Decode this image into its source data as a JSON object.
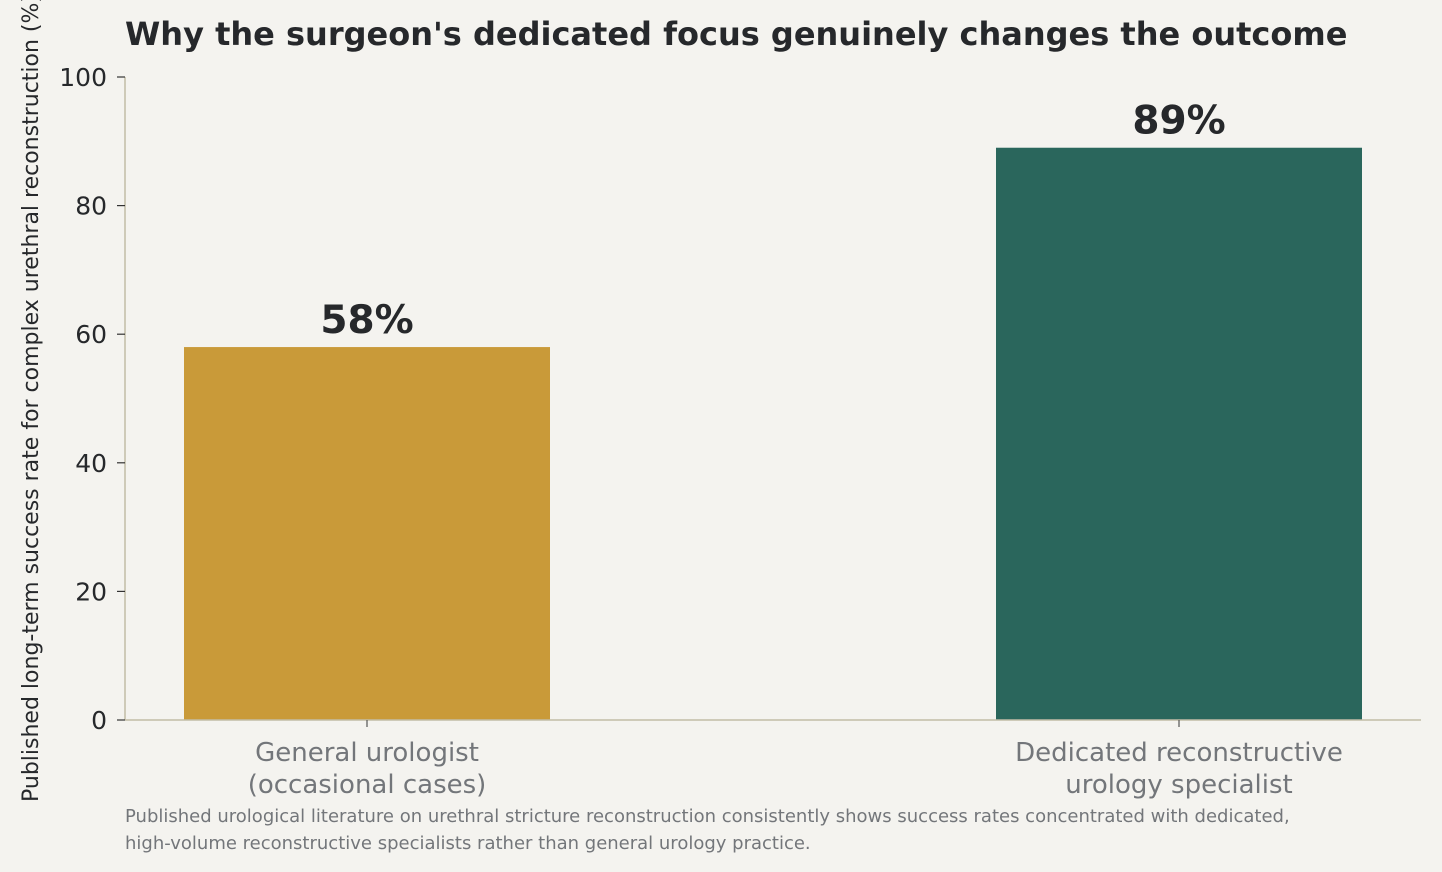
{
  "colors": {
    "background": "#f4f3ef",
    "axis": "#c2bca6",
    "text": "#26282b",
    "muted_text": "#73767a",
    "general": "#c99a39",
    "specialist": "#2a665c"
  },
  "chart_data": {
    "type": "bar",
    "title": "Why the surgeon's dedicated focus genuinely changes the outcome",
    "ylabel": "Published long-term success rate for complex urethral reconstruction (%)",
    "xlabel": "",
    "ylim": [
      0,
      100
    ],
    "yticks": [
      0,
      20,
      40,
      60,
      80,
      100
    ],
    "grid": false,
    "categories": [
      [
        "General urologist",
        "(occasional cases)"
      ],
      [
        "Dedicated reconstructive",
        "urology specialist"
      ]
    ],
    "values": [
      58,
      89
    ],
    "value_labels": [
      "58%",
      "89%"
    ],
    "bar_colors": [
      "#c99a39",
      "#2a665c"
    ]
  },
  "footnote": [
    "Published urological literature on urethral stricture reconstruction consistently shows success rates concentrated with dedicated,",
    "high-volume reconstructive specialists rather than general urology practice."
  ]
}
